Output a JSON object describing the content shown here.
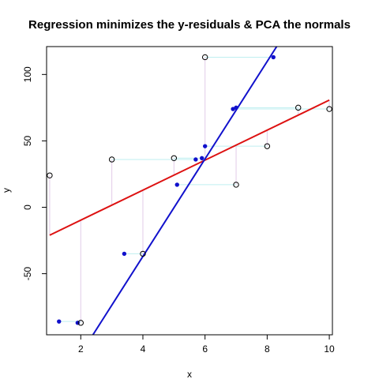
{
  "chart_data": {
    "type": "scatter",
    "title": "Regression minimizes the y-residuals & PCA the normals",
    "xlabel": "x",
    "ylabel": "y",
    "xlim": [
      0.9,
      10.1
    ],
    "ylim": [
      -96,
      121
    ],
    "x_ticks": [
      2,
      4,
      6,
      8,
      10
    ],
    "y_ticks": [
      -50,
      0,
      50,
      100
    ],
    "x_tick_labels": [
      "2",
      "4",
      "6",
      "8",
      "10"
    ],
    "y_tick_labels": [
      "-50",
      "0",
      "50",
      "100"
    ],
    "grid": false,
    "points": {
      "x": [
        1,
        2,
        3,
        4,
        5,
        6,
        7,
        8,
        9,
        10
      ],
      "y": [
        24,
        -87,
        36,
        -35,
        37,
        113,
        17,
        46,
        75,
        74
      ]
    },
    "regression_line": {
      "intercept": -32.3,
      "slope": 11.3,
      "color": "#dd1111"
    },
    "pca_line": {
      "intercept": -183.8,
      "slope": 36.7,
      "color": "#1111cc"
    },
    "projected_points": {
      "x": [
        1.3,
        1.9,
        3.4,
        5.1,
        5.7,
        5.9,
        6.0,
        6.9,
        7.0,
        8.2
      ],
      "y": [
        -86,
        -87,
        -35,
        17,
        36,
        37,
        46,
        74,
        75,
        113
      ]
    },
    "residual_color": "#e2cce8",
    "normal_color": "#bfeff0"
  }
}
